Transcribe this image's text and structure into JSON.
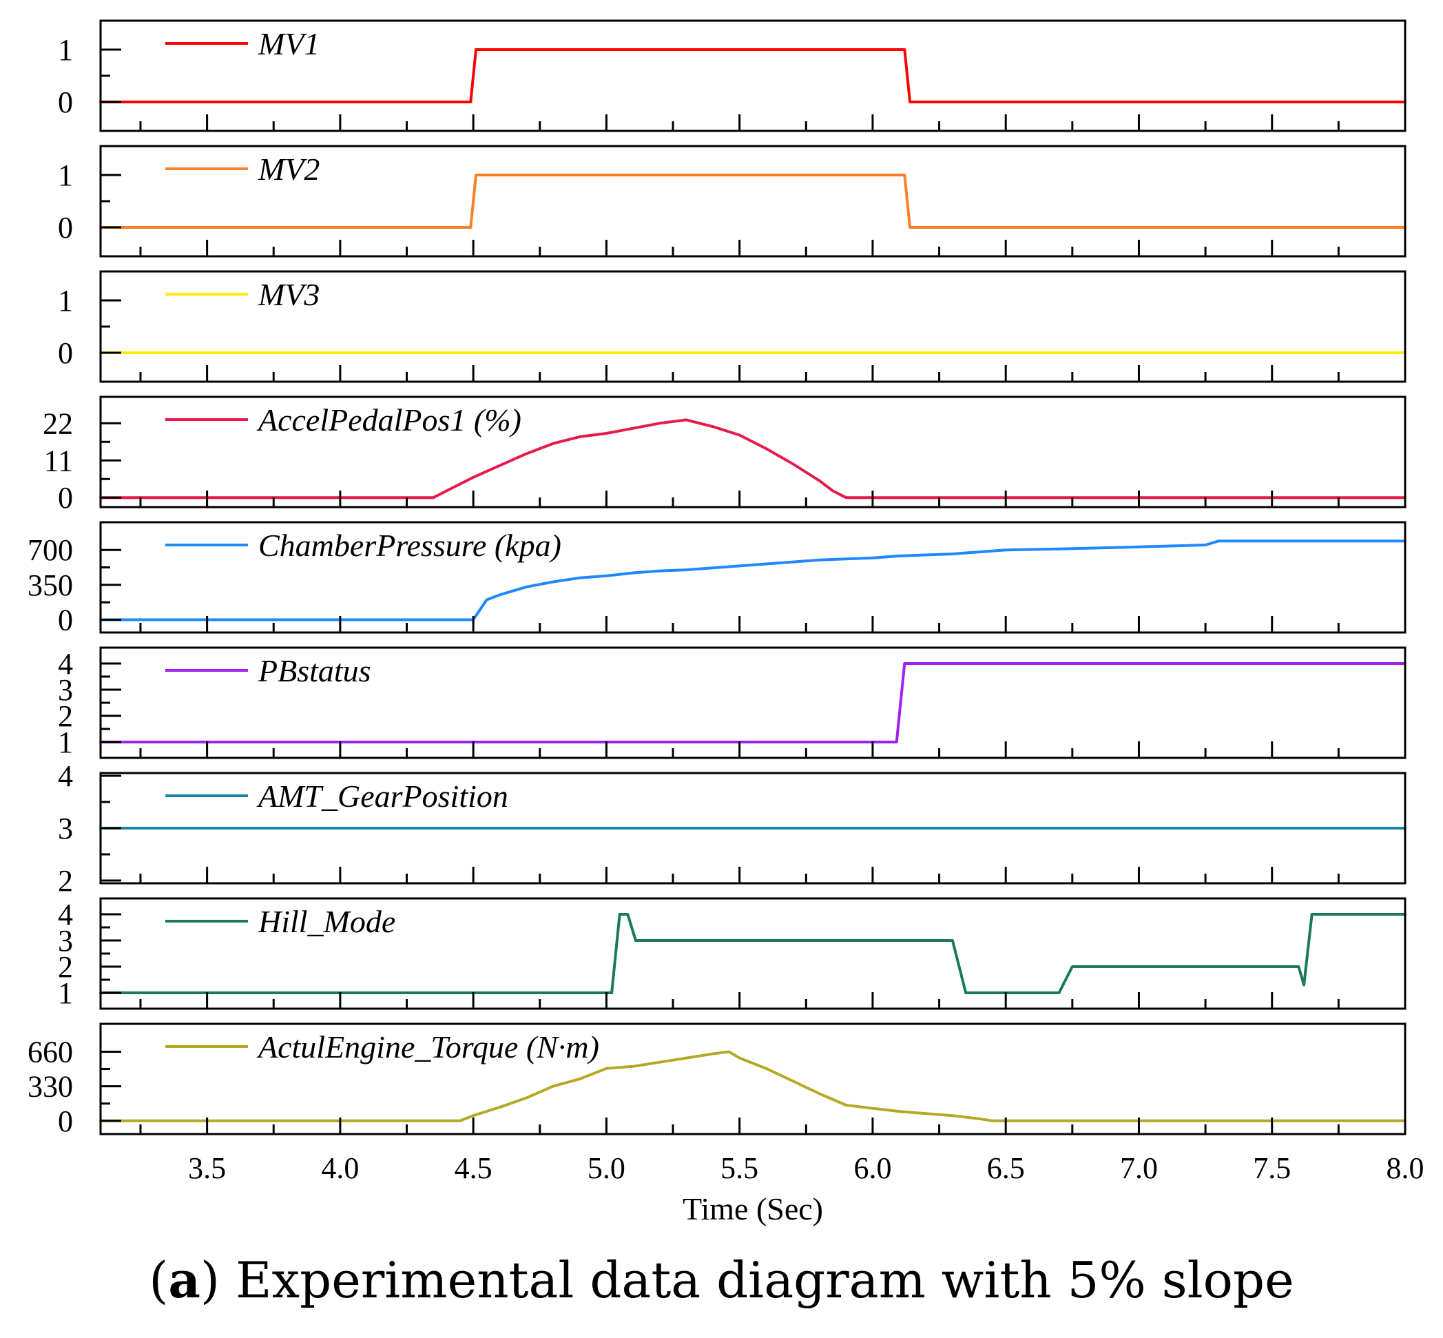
{
  "chart_data": {
    "type": "line",
    "title": "",
    "xlabel": "Time (Sec)",
    "xlim": [
      3.1,
      8.0
    ],
    "xticks": [
      3.5,
      4.0,
      4.5,
      5.0,
      5.5,
      6.0,
      6.5,
      7.0,
      7.5,
      8.0
    ],
    "xtick_labels": [
      "3.5",
      "4.0",
      "4.5",
      "5.0",
      "5.5",
      "6.0",
      "6.5",
      "7.0",
      "7.5",
      "8.0"
    ],
    "panels": [
      {
        "name": "MV1",
        "color": "#ff0000",
        "ylim": [
          -0.5,
          1.5
        ],
        "yticks": [
          0,
          1
        ],
        "ytick_labels": [
          "0",
          "1"
        ],
        "points": [
          [
            3.1,
            0
          ],
          [
            4.49,
            0
          ],
          [
            4.51,
            1
          ],
          [
            6.12,
            1
          ],
          [
            6.14,
            0
          ],
          [
            8.0,
            0
          ]
        ]
      },
      {
        "name": "MV2",
        "color": "#ff7f27",
        "ylim": [
          -0.5,
          1.5
        ],
        "yticks": [
          0,
          1
        ],
        "ytick_labels": [
          "0",
          "1"
        ],
        "points": [
          [
            3.1,
            0
          ],
          [
            4.49,
            0
          ],
          [
            4.51,
            1
          ],
          [
            6.12,
            1
          ],
          [
            6.14,
            0
          ],
          [
            8.0,
            0
          ]
        ]
      },
      {
        "name": "MV3",
        "color": "#ffee00",
        "ylim": [
          -0.5,
          1.5
        ],
        "yticks": [
          0,
          1
        ],
        "ytick_labels": [
          "0",
          "1"
        ],
        "points": [
          [
            3.1,
            0
          ],
          [
            8.0,
            0
          ]
        ]
      },
      {
        "name": "AccelPedalPos1 (%)",
        "color": "#e6194b",
        "ylim": [
          -2,
          29
        ],
        "yticks": [
          0,
          11,
          22
        ],
        "ytick_labels": [
          "0",
          "11",
          "22"
        ],
        "points": [
          [
            3.1,
            0
          ],
          [
            4.35,
            0
          ],
          [
            4.4,
            2
          ],
          [
            4.5,
            6
          ],
          [
            4.6,
            9.5
          ],
          [
            4.7,
            13
          ],
          [
            4.8,
            16
          ],
          [
            4.9,
            18
          ],
          [
            5.0,
            19
          ],
          [
            5.1,
            20.5
          ],
          [
            5.2,
            22
          ],
          [
            5.3,
            23
          ],
          [
            5.4,
            21
          ],
          [
            5.5,
            18.5
          ],
          [
            5.6,
            14.5
          ],
          [
            5.7,
            10
          ],
          [
            5.8,
            5
          ],
          [
            5.85,
            2
          ],
          [
            5.9,
            0
          ],
          [
            8.0,
            0
          ]
        ]
      },
      {
        "name": "ChamberPressure (kpa)",
        "color": "#1e88ff",
        "ylim": [
          -100,
          950
        ],
        "yticks": [
          0,
          350,
          700
        ],
        "ytick_labels": [
          "0",
          "350",
          "700"
        ],
        "points": [
          [
            3.1,
            0
          ],
          [
            4.5,
            0
          ],
          [
            4.55,
            200
          ],
          [
            4.6,
            250
          ],
          [
            4.7,
            330
          ],
          [
            4.8,
            380
          ],
          [
            4.9,
            420
          ],
          [
            5.0,
            440
          ],
          [
            5.1,
            470
          ],
          [
            5.2,
            490
          ],
          [
            5.3,
            500
          ],
          [
            5.4,
            520
          ],
          [
            5.5,
            540
          ],
          [
            5.6,
            560
          ],
          [
            5.7,
            580
          ],
          [
            5.8,
            600
          ],
          [
            6.0,
            620
          ],
          [
            6.1,
            640
          ],
          [
            6.3,
            660
          ],
          [
            6.5,
            700
          ],
          [
            6.7,
            710
          ],
          [
            7.0,
            730
          ],
          [
            7.25,
            750
          ],
          [
            7.3,
            790
          ],
          [
            8.0,
            790
          ]
        ]
      },
      {
        "name": "PBstatus",
        "color": "#a020f0",
        "ylim": [
          0.5,
          4.5
        ],
        "yticks": [
          1,
          2,
          3,
          4
        ],
        "ytick_labels": [
          "1",
          "2",
          "3",
          "4"
        ],
        "points": [
          [
            3.1,
            1
          ],
          [
            6.09,
            1
          ],
          [
            6.12,
            4
          ],
          [
            8.0,
            4
          ]
        ]
      },
      {
        "name": "AMT_GearPosition",
        "color": "#1a85a8",
        "ylim": [
          2,
          4
        ],
        "yticks": [
          2,
          3,
          4
        ],
        "ytick_labels": [
          "2",
          "3",
          "4"
        ],
        "points": [
          [
            3.1,
            3
          ],
          [
            8.0,
            3
          ]
        ]
      },
      {
        "name": "Hill_Mode",
        "color": "#1a7a55",
        "ylim": [
          0.5,
          4.5
        ],
        "yticks": [
          1,
          2,
          3,
          4
        ],
        "ytick_labels": [
          "1",
          "2",
          "3",
          "4"
        ],
        "points": [
          [
            3.1,
            1
          ],
          [
            5.02,
            1
          ],
          [
            5.05,
            4
          ],
          [
            5.08,
            4
          ],
          [
            5.11,
            3
          ],
          [
            6.3,
            3
          ],
          [
            6.35,
            1
          ],
          [
            6.7,
            1
          ],
          [
            6.75,
            2
          ],
          [
            7.6,
            2
          ],
          [
            7.62,
            1.3
          ],
          [
            7.65,
            4
          ],
          [
            8.0,
            4
          ]
        ]
      },
      {
        "name": "ActulEngine_Torque (N·m)",
        "color": "#b5a823",
        "ylim": [
          -100,
          900
        ],
        "yticks": [
          0,
          330,
          660
        ],
        "ytick_labels": [
          "0",
          "330",
          "660"
        ],
        "points": [
          [
            3.1,
            0
          ],
          [
            4.45,
            0
          ],
          [
            4.5,
            50
          ],
          [
            4.6,
            130
          ],
          [
            4.7,
            220
          ],
          [
            4.8,
            330
          ],
          [
            4.9,
            400
          ],
          [
            5.0,
            500
          ],
          [
            5.1,
            520
          ],
          [
            5.2,
            560
          ],
          [
            5.3,
            600
          ],
          [
            5.4,
            640
          ],
          [
            5.46,
            660
          ],
          [
            5.5,
            600
          ],
          [
            5.6,
            500
          ],
          [
            5.7,
            380
          ],
          [
            5.8,
            260
          ],
          [
            5.9,
            150
          ],
          [
            6.0,
            120
          ],
          [
            6.1,
            90
          ],
          [
            6.2,
            70
          ],
          [
            6.3,
            50
          ],
          [
            6.4,
            20
          ],
          [
            6.45,
            0
          ],
          [
            8.0,
            0
          ]
        ]
      }
    ]
  },
  "caption": {
    "label": "a",
    "text": " Experimental data diagram with 5% slope"
  }
}
